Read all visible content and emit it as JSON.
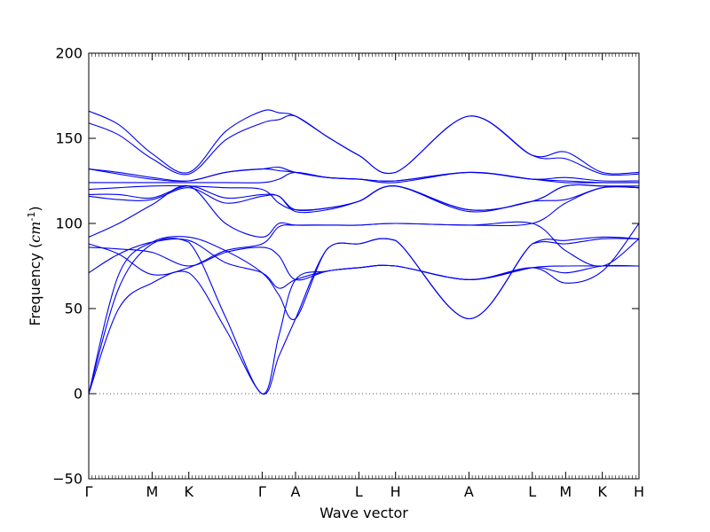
{
  "chart_data": {
    "type": "line",
    "title": "",
    "xlabel": "Wave vector",
    "ylabel": "Frequency",
    "ylabel_unit_math": "cm",
    "ylabel_unit_exp": "-1",
    "ylim": [
      -50,
      200
    ],
    "yticks": [
      -50,
      0,
      50,
      100,
      150,
      200
    ],
    "xlim": [
      0,
      3.3
    ],
    "high_symmetry_points": [
      {
        "label": "Γ",
        "x": 0.0
      },
      {
        "label": "M",
        "x": 0.38
      },
      {
        "label": "K",
        "x": 0.6
      },
      {
        "label": "Γ",
        "x": 1.04
      },
      {
        "label": "A",
        "x": 1.24
      },
      {
        "label": "L",
        "x": 1.62
      },
      {
        "label": "H",
        "x": 1.84
      },
      {
        "label": "A",
        "x": 2.28
      },
      {
        "label": "L",
        "x": 2.66
      },
      {
        "label": "M",
        "x": 2.86
      },
      {
        "label": "K",
        "x": 3.08
      },
      {
        "label": "H",
        "x": 3.3
      }
    ],
    "zero_line": {
      "y": 0,
      "style": "dotted"
    },
    "line_color": "#0000ee",
    "series": [
      {
        "x": [
          0,
          0.18,
          0.38,
          0.6,
          0.82,
          1.04,
          1.14,
          1.24,
          1.43,
          1.62,
          1.84,
          2.28,
          2.66,
          2.86,
          3.08,
          3.3
        ],
        "y": [
          0,
          50,
          65,
          71,
          38,
          0,
          22,
          44,
          85,
          88,
          90,
          44,
          88,
          88,
          91,
          91
        ]
      },
      {
        "x": [
          0,
          0.18,
          0.38,
          0.6,
          0.82,
          1.04,
          1.14,
          1.24,
          1.43,
          1.62,
          1.84,
          2.28,
          2.66,
          2.86,
          3.08,
          3.3
        ],
        "y": [
          0,
          62,
          88,
          89,
          45,
          0,
          34,
          67,
          72,
          74,
          75,
          67,
          74,
          65,
          72,
          100
        ]
      },
      {
        "x": [
          0,
          0.18,
          0.38,
          0.6,
          0.82,
          1.04,
          1.14,
          1.24,
          1.43,
          1.62,
          1.84,
          2.28,
          2.66,
          2.86,
          3.08,
          3.3
        ],
        "y": [
          0,
          70,
          89,
          92,
          84,
          71,
          58,
          44,
          85,
          88,
          90,
          44,
          88,
          90,
          92,
          91
        ]
      },
      {
        "x": [
          0,
          0.18,
          0.38,
          0.6,
          0.82,
          1.04,
          1.14,
          1.24,
          1.43,
          1.62,
          1.84,
          2.28,
          2.66,
          2.86,
          3.08,
          3.3
        ],
        "y": [
          71,
          82,
          89,
          90,
          77,
          71,
          62,
          67,
          72,
          74,
          75,
          67,
          74,
          71,
          75,
          75
        ]
      },
      {
        "x": [
          0,
          0.18,
          0.38,
          0.6,
          0.82,
          1.04,
          1.14,
          1.24,
          1.43,
          1.62,
          1.84,
          2.28,
          2.66,
          2.86,
          3.08,
          3.3
        ],
        "y": [
          86,
          85,
          83,
          75,
          83,
          86,
          81,
          67,
          72,
          74,
          75,
          67,
          74,
          75,
          75,
          75
        ]
      },
      {
        "x": [
          0,
          0.18,
          0.38,
          0.6,
          0.82,
          1.04,
          1.14,
          1.24,
          1.43,
          1.62,
          1.84,
          2.28,
          2.66,
          2.86,
          3.08,
          3.3
        ],
        "y": [
          88,
          82,
          70,
          74,
          84,
          88,
          98,
          99,
          99,
          99,
          100,
          99,
          100,
          84,
          75,
          91
        ]
      },
      {
        "x": [
          0,
          0.18,
          0.38,
          0.6,
          0.82,
          1.04,
          1.14,
          1.24,
          1.43,
          1.62,
          1.84,
          2.28,
          2.66,
          2.86,
          3.08,
          3.3
        ],
        "y": [
          92,
          100,
          111,
          122,
          100,
          92,
          100,
          99,
          99,
          99,
          100,
          99,
          100,
          112,
          121,
          121
        ]
      },
      {
        "x": [
          0,
          0.18,
          0.38,
          0.6,
          0.82,
          1.04,
          1.14,
          1.24,
          1.43,
          1.62,
          1.84,
          2.28,
          2.66,
          2.86,
          3.08,
          3.3
        ],
        "y": [
          116,
          114,
          114,
          121,
          112,
          116,
          116,
          107,
          108,
          113,
          122,
          107,
          113,
          114,
          121,
          121
        ]
      },
      {
        "x": [
          0,
          0.18,
          0.38,
          0.6,
          0.82,
          1.04,
          1.14,
          1.24,
          1.43,
          1.62,
          1.84,
          2.28,
          2.66,
          2.86,
          3.08,
          3.3
        ],
        "y": [
          117,
          117,
          115,
          122,
          115,
          117,
          116,
          108,
          109,
          113,
          122,
          108,
          113,
          122,
          122,
          122
        ]
      },
      {
        "x": [
          0,
          0.18,
          0.38,
          0.6,
          0.82,
          1.04,
          1.14,
          1.24,
          1.43,
          1.62,
          1.84,
          2.28,
          2.66,
          2.86,
          3.08,
          3.3
        ],
        "y": [
          120,
          121,
          122,
          122,
          121,
          120,
          112,
          108,
          109,
          113,
          122,
          108,
          113,
          122,
          122,
          121
        ]
      },
      {
        "x": [
          0,
          0.18,
          0.38,
          0.6,
          0.82,
          1.04,
          1.14,
          1.24,
          1.43,
          1.62,
          1.84,
          2.28,
          2.66,
          2.86,
          3.08,
          3.3
        ],
        "y": [
          124,
          124,
          124,
          124,
          124,
          124,
          126,
          130,
          127,
          126,
          124,
          130,
          126,
          124,
          124,
          124
        ]
      },
      {
        "x": [
          0,
          0.18,
          0.38,
          0.6,
          0.82,
          1.04,
          1.14,
          1.24,
          1.43,
          1.62,
          1.84,
          2.28,
          2.66,
          2.86,
          3.08,
          3.3
        ],
        "y": [
          132,
          129,
          126,
          125,
          130,
          132,
          131,
          130,
          127,
          126,
          125,
          130,
          126,
          127,
          125,
          125
        ]
      },
      {
        "x": [
          0,
          0.18,
          0.38,
          0.6,
          0.82,
          1.04,
          1.14,
          1.24,
          1.43,
          1.62,
          1.84,
          2.28,
          2.66,
          2.86,
          3.08,
          3.3
        ],
        "y": [
          132,
          130,
          127,
          125,
          130,
          132,
          133,
          130,
          127,
          126,
          125,
          130,
          126,
          125,
          124,
          124
        ]
      },
      {
        "x": [
          0,
          0.18,
          0.38,
          0.6,
          0.82,
          1.04,
          1.14,
          1.24,
          1.43,
          1.62,
          1.84,
          2.28,
          2.66,
          2.86,
          3.08,
          3.3
        ],
        "y": [
          159,
          152,
          138,
          129,
          149,
          159,
          161,
          163,
          151,
          140,
          130,
          163,
          140,
          138,
          129,
          129
        ]
      },
      {
        "x": [
          0,
          0.18,
          0.38,
          0.6,
          0.82,
          1.04,
          1.14,
          1.24,
          1.43,
          1.62,
          1.84,
          2.28,
          2.66,
          2.86,
          3.08,
          3.3
        ],
        "y": [
          166,
          158,
          141,
          130,
          154,
          166,
          165,
          163,
          151,
          140,
          130,
          163,
          140,
          142,
          130,
          130
        ]
      }
    ]
  }
}
